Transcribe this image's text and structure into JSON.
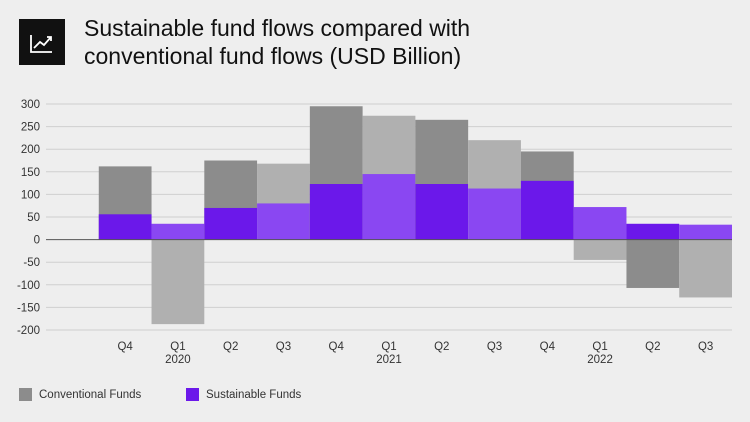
{
  "header": {
    "title_line1": "Sustainable fund flows compared with",
    "title_line2": "conventional fund flows (USD Billion)",
    "icon": "trend-chart-icon"
  },
  "legend": {
    "conventional": "Conventional Funds",
    "sustainable": "Sustainable Funds"
  },
  "colors": {
    "conventional_dark": "#8c8c8c",
    "conventional_light": "#b0b0b0",
    "sustainable_dark": "#6b18ea",
    "sustainable_light": "#8a47f2",
    "grid": "#cfcfcf",
    "zero_line": "#555555",
    "background": "#eeeeee",
    "icon_bg": "#111111"
  },
  "chart_data": {
    "type": "bar",
    "title": "Sustainable fund flows compared with conventional fund flows (USD Billion)",
    "xlabel": "",
    "ylabel": "",
    "ylim": [
      -200,
      300
    ],
    "yticks": [
      300,
      250,
      200,
      150,
      100,
      50,
      0,
      -50,
      -100,
      -150,
      -200
    ],
    "grid": true,
    "legend_position": "bottom-left",
    "categories": [
      "",
      "Q4",
      "Q1",
      "Q2",
      "Q3",
      "Q4",
      "Q1",
      "Q2",
      "Q3",
      "Q4",
      "Q1",
      "Q2",
      "Q3"
    ],
    "year_labels": [
      "",
      "",
      "2020",
      "",
      "",
      "",
      "2021",
      "",
      "",
      "",
      "2022",
      "",
      ""
    ],
    "series": [
      {
        "name": "Conventional Funds",
        "values": [
          0,
          162,
          -187,
          175,
          168,
          295,
          274,
          265,
          220,
          195,
          -45,
          -107,
          -128
        ]
      },
      {
        "name": "Sustainable Funds",
        "values": [
          0,
          56,
          35,
          70,
          80,
          123,
          145,
          123,
          113,
          130,
          72,
          35,
          33
        ]
      }
    ]
  }
}
